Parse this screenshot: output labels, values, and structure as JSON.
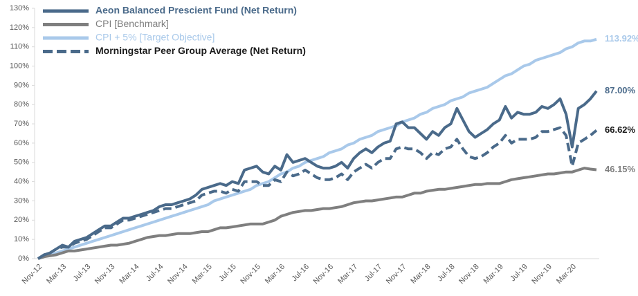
{
  "chart_data": {
    "type": "line",
    "categories": [
      "Nov-12",
      null,
      null,
      null,
      "Mar-13",
      null,
      null,
      null,
      "Jul-13",
      null,
      null,
      null,
      "Nov-13",
      null,
      null,
      null,
      "Mar-14",
      null,
      null,
      null,
      "Jul-14",
      null,
      null,
      null,
      "Nov-14",
      null,
      null,
      null,
      "Mar-15",
      null,
      null,
      null,
      "Jul-15",
      null,
      null,
      null,
      "Nov-15",
      null,
      null,
      null,
      "Mar-16",
      null,
      null,
      null,
      "Jul-16",
      null,
      null,
      null,
      "Nov-16",
      null,
      null,
      null,
      "Mar-17",
      null,
      null,
      null,
      "Jul-17",
      null,
      null,
      null,
      "Nov-17",
      null,
      null,
      null,
      "Mar-18",
      null,
      null,
      null,
      "Jul-18",
      null,
      null,
      null,
      "Nov-18",
      null,
      null,
      null,
      "Mar-19",
      null,
      null,
      null,
      "Jul-19",
      null,
      null,
      null,
      "Nov-19",
      null,
      null,
      null,
      "Mar-20",
      null,
      null,
      null,
      null
    ],
    "series": [
      {
        "name": "Aeon Balanced Prescient Fund (Net Return)",
        "color": "#4a6a8a",
        "dashed": false,
        "values": [
          0,
          2,
          3,
          5,
          7,
          6,
          9,
          10,
          11,
          13,
          15,
          17,
          17,
          19,
          21,
          21,
          22,
          23,
          24,
          25,
          27,
          28,
          28,
          29,
          30,
          31,
          33,
          36,
          37,
          38,
          39,
          38,
          40,
          39,
          46,
          47,
          48,
          45,
          44,
          48,
          46,
          54,
          50,
          51,
          52,
          50,
          48,
          47,
          47,
          48,
          50,
          47,
          52,
          55,
          57,
          55,
          58,
          60,
          61,
          70,
          71,
          68,
          68,
          65,
          62,
          66,
          64,
          68,
          70,
          78,
          72,
          66,
          63,
          65,
          67,
          70,
          72,
          79,
          73,
          76,
          75,
          75,
          76,
          79,
          78,
          80,
          83,
          75,
          58,
          78,
          80,
          83,
          87
        ],
        "value_labels": [
          null,
          null,
          null,
          null,
          null,
          null,
          null,
          null,
          null,
          null,
          null,
          null,
          null,
          null,
          null,
          null,
          null,
          null,
          null,
          null,
          null,
          null,
          null,
          null,
          null,
          null,
          null,
          null,
          null,
          null,
          null,
          null,
          null,
          null,
          null,
          null,
          null,
          null,
          null,
          null,
          null,
          null,
          null,
          null,
          null,
          null,
          null,
          null,
          null,
          null,
          null,
          null,
          null,
          null,
          null,
          null,
          null,
          null,
          null,
          null,
          null,
          null,
          null,
          null,
          null,
          null,
          null,
          null,
          null,
          null,
          null,
          null,
          null,
          null,
          null,
          null,
          null,
          null,
          null,
          null,
          null,
          null,
          null,
          null,
          null,
          null,
          null,
          null,
          null,
          null,
          null,
          null,
          "87.00%"
        ]
      },
      {
        "name": "CPI [Benchmark]",
        "color": "#7f7f7f",
        "dashed": false,
        "values": [
          0,
          1,
          1.5,
          2,
          3,
          4,
          4,
          4.5,
          5,
          5.5,
          6,
          6.5,
          7,
          7,
          7.5,
          8,
          9,
          10,
          11,
          11.5,
          12,
          12,
          12.5,
          13,
          13,
          13,
          13.5,
          14,
          14,
          15,
          16,
          16,
          16.5,
          17,
          17.5,
          18,
          18,
          18,
          19,
          20,
          22,
          23,
          24,
          24.5,
          25,
          25,
          25.5,
          26,
          26,
          26.5,
          27,
          28,
          29,
          29.5,
          30,
          30,
          30.5,
          31,
          31.5,
          32,
          32,
          33,
          34,
          34,
          35,
          35.5,
          36,
          36,
          36.5,
          37,
          37.5,
          38,
          38.5,
          38.5,
          39,
          39,
          39,
          40,
          41,
          41.5,
          42,
          42.5,
          43,
          43.5,
          44,
          44,
          44.5,
          45,
          45,
          46,
          47,
          46.5,
          46.15
        ],
        "value_labels": [
          null,
          null,
          null,
          null,
          null,
          null,
          null,
          null,
          null,
          null,
          null,
          null,
          null,
          null,
          null,
          null,
          null,
          null,
          null,
          null,
          null,
          null,
          null,
          null,
          null,
          null,
          null,
          null,
          null,
          null,
          null,
          null,
          null,
          null,
          null,
          null,
          null,
          null,
          null,
          null,
          null,
          null,
          null,
          null,
          null,
          null,
          null,
          null,
          null,
          null,
          null,
          null,
          null,
          null,
          null,
          null,
          null,
          null,
          null,
          null,
          null,
          null,
          null,
          null,
          null,
          null,
          null,
          null,
          null,
          null,
          null,
          null,
          null,
          null,
          null,
          null,
          null,
          null,
          null,
          null,
          null,
          null,
          null,
          null,
          null,
          null,
          null,
          null,
          null,
          null,
          null,
          null,
          "46.15%"
        ]
      },
      {
        "name": "CPI + 5% [Target Objective]",
        "color": "#a9c9ea",
        "dashed": false,
        "values": [
          0,
          1,
          2,
          3,
          4,
          5,
          6,
          7,
          8,
          9,
          10,
          11,
          12,
          13,
          14,
          15,
          16,
          17,
          18,
          19,
          20,
          21,
          22,
          23,
          24,
          25,
          26,
          27,
          28,
          30,
          31,
          32,
          33,
          34,
          35,
          36,
          38,
          39,
          40,
          42,
          44,
          45,
          47,
          48,
          50,
          51,
          52,
          53,
          55,
          56,
          57,
          59,
          60,
          62,
          63,
          64,
          66,
          67,
          68,
          69,
          71,
          72,
          73,
          75,
          76,
          78,
          79,
          80,
          82,
          83,
          84,
          86,
          87,
          88,
          89,
          91,
          93,
          95,
          96,
          98,
          100,
          101,
          103,
          104,
          105,
          106,
          107,
          109,
          110,
          112,
          113,
          113,
          113.92
        ],
        "value_labels": [
          null,
          null,
          null,
          null,
          null,
          null,
          null,
          null,
          null,
          null,
          null,
          null,
          null,
          null,
          null,
          null,
          null,
          null,
          null,
          null,
          null,
          null,
          null,
          null,
          null,
          null,
          null,
          null,
          null,
          null,
          null,
          null,
          null,
          null,
          null,
          null,
          null,
          null,
          null,
          null,
          null,
          null,
          null,
          null,
          null,
          null,
          null,
          null,
          null,
          null,
          null,
          null,
          null,
          null,
          null,
          null,
          null,
          null,
          null,
          null,
          null,
          null,
          null,
          null,
          null,
          null,
          null,
          null,
          null,
          null,
          null,
          null,
          null,
          null,
          null,
          null,
          null,
          null,
          null,
          null,
          null,
          null,
          null,
          null,
          null,
          null,
          null,
          null,
          null,
          null,
          null,
          null,
          "113.92%"
        ]
      },
      {
        "name": "Morningstar Peer Group Average (Net Return)",
        "color": "#4a6a8a",
        "dashed": true,
        "values": [
          0,
          2,
          3,
          5,
          6,
          6,
          8,
          9,
          10,
          12,
          14,
          16,
          16,
          18,
          20,
          20,
          21,
          22,
          23,
          24,
          25,
          26,
          26,
          27,
          28,
          29,
          30,
          33,
          34,
          35,
          35,
          34,
          36,
          35,
          40,
          40,
          40,
          38,
          38,
          41,
          40,
          45,
          43,
          44,
          46,
          44,
          42,
          41,
          41,
          42,
          44,
          41,
          45,
          47,
          49,
          47,
          50,
          52,
          52,
          57,
          58,
          57,
          57,
          55,
          52,
          55,
          54,
          57,
          58,
          62,
          57,
          53,
          52,
          53,
          55,
          58,
          60,
          64,
          60,
          62,
          62,
          62,
          63,
          66,
          66,
          67,
          68,
          64,
          48,
          60,
          62,
          64,
          66.62
        ],
        "value_labels": [
          null,
          null,
          null,
          null,
          null,
          null,
          null,
          null,
          null,
          null,
          null,
          null,
          null,
          null,
          null,
          null,
          null,
          null,
          null,
          null,
          null,
          null,
          null,
          null,
          null,
          null,
          null,
          null,
          null,
          null,
          null,
          null,
          null,
          null,
          null,
          null,
          null,
          null,
          null,
          null,
          null,
          null,
          null,
          null,
          null,
          null,
          null,
          null,
          null,
          null,
          null,
          null,
          null,
          null,
          null,
          null,
          null,
          null,
          null,
          null,
          null,
          null,
          null,
          null,
          null,
          null,
          null,
          null,
          null,
          null,
          null,
          null,
          null,
          null,
          null,
          null,
          null,
          null,
          null,
          null,
          null,
          null,
          null,
          null,
          null,
          null,
          null,
          null,
          null,
          null,
          null,
          null,
          "66.62%"
        ]
      }
    ],
    "ylim": [
      0,
      130
    ],
    "yticks": [
      {
        "value": 0,
        "label": "0%"
      },
      {
        "value": 10,
        "label": "10%"
      },
      {
        "value": 20,
        "label": "20%"
      },
      {
        "value": 30,
        "label": "30%"
      },
      {
        "value": 40,
        "label": "40%"
      },
      {
        "value": 50,
        "label": "50%"
      },
      {
        "value": 60,
        "label": "60%"
      },
      {
        "value": 70,
        "label": "70%"
      },
      {
        "value": 80,
        "label": "80%"
      },
      {
        "value": 90,
        "label": "90%"
      },
      {
        "value": 100,
        "label": "100%"
      },
      {
        "value": 110,
        "label": "110%"
      },
      {
        "value": 120,
        "label": "120%"
      },
      {
        "value": 130,
        "label": "130%"
      }
    ],
    "grid": false,
    "legend": "top-left"
  }
}
